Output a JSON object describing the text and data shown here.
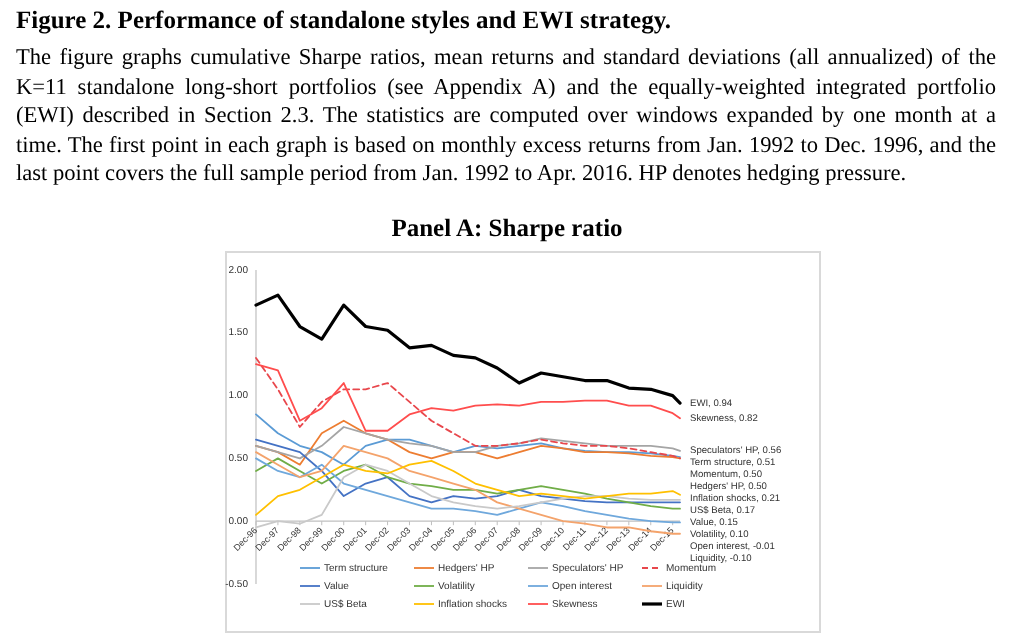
{
  "chart_data": {
    "type": "line",
    "title": "Figure 2. Performance of standalone styles and EWI strategy.",
    "subtitle": "The figure graphs cumulative Sharpe ratios, mean returns and standard deviations (all annualized) of the K=11 standalone long-short portfolios (see Appendix A) and the equally-weighted integrated portfolio (EWI) described in Section 2.3. The statistics are computed over windows expanded by one month at a time. The first point in each graph is based on monthly excess returns from Jan. 1992 to Dec. 1996, and the last point covers the full sample period from Jan. 1992 to Apr. 2016. HP denotes hedging pressure.",
    "x": [
      "1996-12",
      "1997-12",
      "1998-12",
      "1999-12",
      "2000-12",
      "2001-12",
      "2002-12",
      "2003-12",
      "2004-12",
      "2005-12",
      "2006-12",
      "2007-12",
      "2008-12",
      "2009-12",
      "2010-12",
      "2011-12",
      "2012-12",
      "2013-12",
      "2014-12",
      "2015-12",
      "2016-04"
    ],
    "xlim": [
      "1996-12",
      "2016-04"
    ],
    "xticks": [
      {
        "value": "1996-12",
        "label": "Dec-96"
      },
      {
        "value": "1997-12",
        "label": "Dec-97"
      },
      {
        "value": "1998-12",
        "label": "Dec-98"
      },
      {
        "value": "1999-12",
        "label": "Dec-99"
      },
      {
        "value": "2000-12",
        "label": "Dec-00"
      },
      {
        "value": "2001-12",
        "label": "Dec-01"
      },
      {
        "value": "2002-12",
        "label": "Dec-02"
      },
      {
        "value": "2003-12",
        "label": "Dec-03"
      },
      {
        "value": "2004-12",
        "label": "Dec-04"
      },
      {
        "value": "2005-12",
        "label": "Dec-05"
      },
      {
        "value": "2006-12",
        "label": "Dec-06"
      },
      {
        "value": "2007-12",
        "label": "Dec-07"
      },
      {
        "value": "2008-12",
        "label": "Dec-08"
      },
      {
        "value": "2009-12",
        "label": "Dec-09"
      },
      {
        "value": "2010-12",
        "label": "Dec-10"
      },
      {
        "value": "2011-12",
        "label": "Dec-11"
      },
      {
        "value": "2012-12",
        "label": "Dec-12"
      },
      {
        "value": "2013-12",
        "label": "Dec-13"
      },
      {
        "value": "2014-12",
        "label": "Dec-14"
      },
      {
        "value": "2015-12",
        "label": "Dec-15"
      }
    ],
    "ylim": [
      -0.5,
      2.0
    ],
    "yticks": [
      {
        "value": -0.5,
        "label": "-0.50"
      },
      {
        "value": 0,
        "label": "0.00"
      },
      {
        "value": 0.5,
        "label": "0.50"
      },
      {
        "value": 1,
        "label": "1.00"
      },
      {
        "value": 1.5,
        "label": "1.50"
      },
      {
        "value": 2,
        "label": "2.00"
      }
    ],
    "legend": "bottom",
    "series": [
      {
        "name": "Term structure",
        "color": "#5b9bd5",
        "values": [
          0.85,
          0.7,
          0.6,
          0.55,
          0.45,
          0.6,
          0.65,
          0.65,
          0.6,
          0.55,
          0.6,
          0.58,
          0.6,
          0.62,
          0.58,
          0.56,
          0.55,
          0.55,
          0.54,
          0.52,
          0.51
        ]
      },
      {
        "name": "Hedgers' HP",
        "color": "#ed7d31",
        "values": [
          0.6,
          0.55,
          0.45,
          0.7,
          0.8,
          0.7,
          0.65,
          0.55,
          0.5,
          0.55,
          0.55,
          0.5,
          0.55,
          0.6,
          0.58,
          0.55,
          0.55,
          0.54,
          0.52,
          0.51,
          0.5
        ]
      },
      {
        "name": "Speculators' HP",
        "color": "#a5a5a5",
        "values": [
          0.6,
          0.55,
          0.5,
          0.6,
          0.75,
          0.7,
          0.65,
          0.62,
          0.6,
          0.55,
          0.55,
          0.6,
          0.62,
          0.66,
          0.64,
          0.62,
          0.6,
          0.6,
          0.6,
          0.58,
          0.56
        ]
      },
      {
        "name": "Momentum",
        "color": "#e8474c",
        "line_style": "dashed",
        "values": [
          1.3,
          1.05,
          0.75,
          0.95,
          1.05,
          1.05,
          1.1,
          0.95,
          0.8,
          0.7,
          0.6,
          0.6,
          0.62,
          0.65,
          0.62,
          0.6,
          0.6,
          0.58,
          0.55,
          0.52,
          0.5
        ]
      },
      {
        "name": "Value",
        "color": "#4472c4",
        "values": [
          0.65,
          0.6,
          0.55,
          0.4,
          0.2,
          0.3,
          0.35,
          0.2,
          0.15,
          0.2,
          0.18,
          0.2,
          0.25,
          0.2,
          0.18,
          0.16,
          0.15,
          0.15,
          0.15,
          0.15,
          0.15
        ]
      },
      {
        "name": "Volatility",
        "color": "#70ad47",
        "values": [
          0.4,
          0.5,
          0.4,
          0.3,
          0.4,
          0.45,
          0.35,
          0.3,
          0.28,
          0.25,
          0.25,
          0.22,
          0.25,
          0.28,
          0.25,
          0.22,
          0.18,
          0.15,
          0.12,
          0.1,
          0.1
        ]
      },
      {
        "name": "Open interest",
        "color": "#6fa8dc",
        "values": [
          0.5,
          0.4,
          0.35,
          0.45,
          0.3,
          0.25,
          0.2,
          0.15,
          0.1,
          0.1,
          0.08,
          0.05,
          0.1,
          0.15,
          0.12,
          0.08,
          0.05,
          0.02,
          0.0,
          -0.01,
          -0.01
        ]
      },
      {
        "name": "Liquidity",
        "color": "#f4a36b",
        "values": [
          0.55,
          0.45,
          0.35,
          0.4,
          0.6,
          0.55,
          0.5,
          0.4,
          0.35,
          0.3,
          0.25,
          0.15,
          0.1,
          0.05,
          0.0,
          -0.02,
          -0.05,
          -0.05,
          -0.08,
          -0.1,
          -0.1
        ]
      },
      {
        "name": "US$ Beta",
        "color": "#c9c9c9",
        "values": [
          -0.05,
          0.0,
          -0.02,
          0.05,
          0.35,
          0.45,
          0.4,
          0.3,
          0.2,
          0.15,
          0.12,
          0.1,
          0.12,
          0.15,
          0.18,
          0.2,
          0.2,
          0.18,
          0.17,
          0.17,
          0.17
        ]
      },
      {
        "name": "Inflation shocks",
        "color": "#ffc000",
        "values": [
          0.05,
          0.2,
          0.25,
          0.35,
          0.45,
          0.4,
          0.38,
          0.45,
          0.48,
          0.4,
          0.3,
          0.25,
          0.2,
          0.22,
          0.2,
          0.18,
          0.2,
          0.22,
          0.22,
          0.24,
          0.21
        ]
      },
      {
        "name": "Skewness",
        "color": "#ff4d4d",
        "values": [
          1.25,
          1.2,
          0.8,
          0.9,
          1.1,
          0.72,
          0.72,
          0.85,
          0.9,
          0.88,
          0.92,
          0.93,
          0.92,
          0.95,
          0.95,
          0.96,
          0.96,
          0.92,
          0.92,
          0.86,
          0.82
        ]
      },
      {
        "name": "EWI",
        "color": "#000000",
        "values": [
          1.72,
          1.8,
          1.55,
          1.45,
          1.72,
          1.55,
          1.52,
          1.38,
          1.4,
          1.32,
          1.3,
          1.22,
          1.1,
          1.18,
          1.15,
          1.12,
          1.12,
          1.06,
          1.05,
          1.0,
          0.94
        ]
      }
    ],
    "annotations": [
      "Panel A: Sharpe ratio",
      {
        "text": "EWI, 0.94",
        "x": "2016-04",
        "y": 0.94
      },
      {
        "text": "Skewness, 0.82",
        "x": "2016-04",
        "y": 0.82
      },
      {
        "text": "Speculators' HP, 0.56",
        "x": "2016-04",
        "y": 0.56
      },
      {
        "text": "Term structure, 0.51",
        "x": "2016-04",
        "y": 0.51
      },
      {
        "text": "Momentum, 0.50",
        "x": "2016-04",
        "y": 0.5
      },
      {
        "text": "Hedgers' HP, 0.50",
        "x": "2016-04",
        "y": 0.5
      },
      {
        "text": "Inflation shocks, 0.21",
        "x": "2016-04",
        "y": 0.21
      },
      {
        "text": "US$ Beta, 0.17",
        "x": "2016-04",
        "y": 0.17
      },
      {
        "text": "Value, 0.15",
        "x": "2016-04",
        "y": 0.15
      },
      {
        "text": "Volatility, 0.10",
        "x": "2016-04",
        "y": 0.1
      },
      {
        "text": "Open interest, -0.01",
        "x": "2016-04",
        "y": -0.01
      },
      {
        "text": "Liquidity, -0.10",
        "x": "2016-04",
        "y": -0.1
      }
    ]
  }
}
